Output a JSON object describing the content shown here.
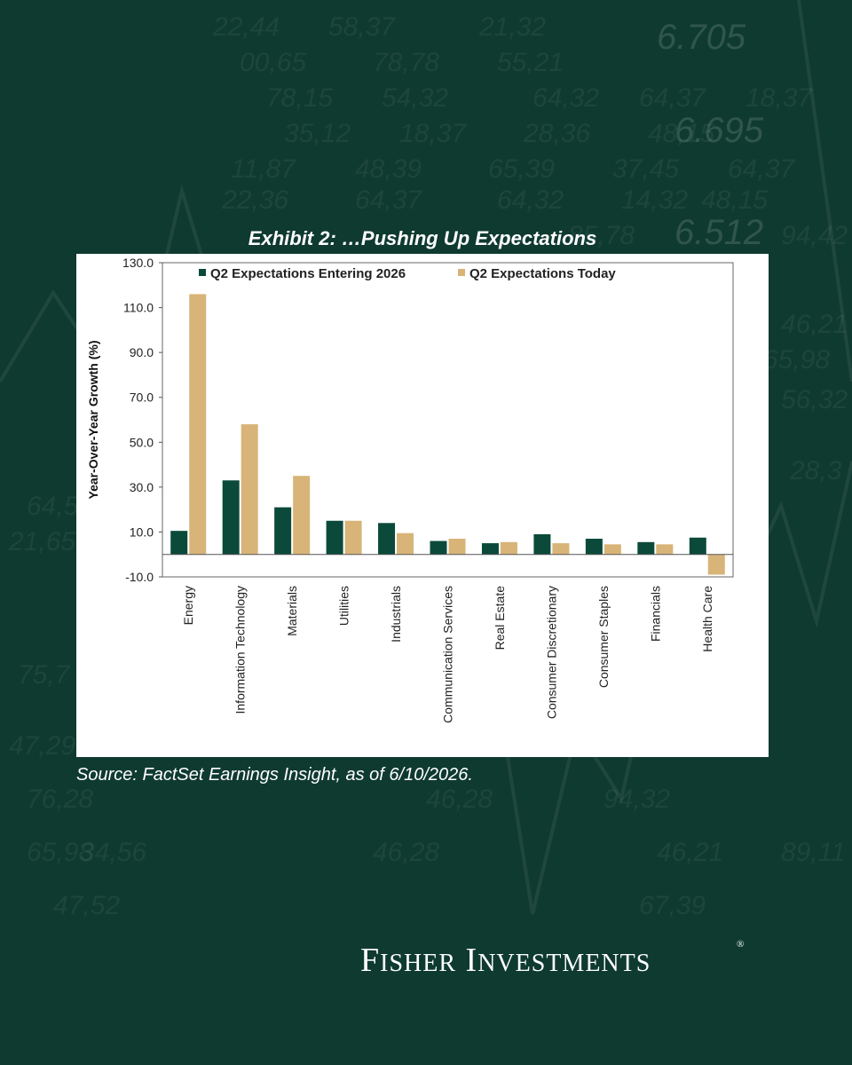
{
  "colors": {
    "background": "#0f3a30",
    "series_entering": "#0b4a3b",
    "series_today": "#d8b478"
  },
  "background_numbers": [
    "22,44",
    "58,37",
    "21,32",
    "6.705",
    "00,65",
    "78,78",
    "55,21",
    "78,15",
    "54,32",
    "64,32",
    "64,37",
    "18,37",
    "35,12",
    "18,37",
    "28,36",
    "48,15",
    "6.695",
    "11,87",
    "48,39",
    "65,39",
    "37,45",
    "64,37",
    "22,36",
    "64,37",
    "64,32",
    "14,32",
    "48,15",
    "6.512",
    "85,78",
    "94,42",
    "46,21",
    "65,98",
    "56,32",
    "28,3",
    "64,5",
    "21,65",
    "75,7",
    "47,29",
    "94,32",
    "46,28",
    "76,28",
    "65,98",
    "34,56",
    "46,28",
    "46,21",
    "89,11",
    "47,52",
    "67,39"
  ],
  "exhibit_title": "Exhibit 2: …Pushing Up Expectations",
  "chart_data": {
    "type": "bar",
    "title": "Exhibit 2: …Pushing Up Expectations",
    "ylabel": "Year-Over-Year Growth (%)",
    "xlabel": "",
    "ylim": [
      -10,
      130
    ],
    "yticks": [
      "130.0",
      "110.0",
      "90.0",
      "70.0",
      "50.0",
      "30.0",
      "10.0",
      "-10.0"
    ],
    "legend_position": "top",
    "grid": false,
    "categories": [
      "Energy",
      "Information Technology",
      "Materials",
      "Utilities",
      "Industrials",
      "Communication Services",
      "Real Estate",
      "Consumer Discretionary",
      "Consumer Staples",
      "Financials",
      "Health Care"
    ],
    "series": [
      {
        "name": "Q2 Expectations Entering 2026",
        "values": [
          10.5,
          33.0,
          21.0,
          15.0,
          14.0,
          6.0,
          5.0,
          9.0,
          7.0,
          5.5,
          7.5
        ]
      },
      {
        "name": "Q2 Expectations Today",
        "values": [
          116.0,
          58.0,
          35.0,
          15.0,
          9.5,
          7.0,
          5.5,
          5.0,
          4.5,
          4.5,
          -9.0
        ]
      }
    ]
  },
  "source_note": "Source: FactSet Earnings Insight, as of 6/10/2026.",
  "logo": {
    "word1_first": "F",
    "word1_rest": "ISHER",
    "word2_first": "I",
    "word2_rest": "NVESTMENTS",
    "registered": "®"
  }
}
